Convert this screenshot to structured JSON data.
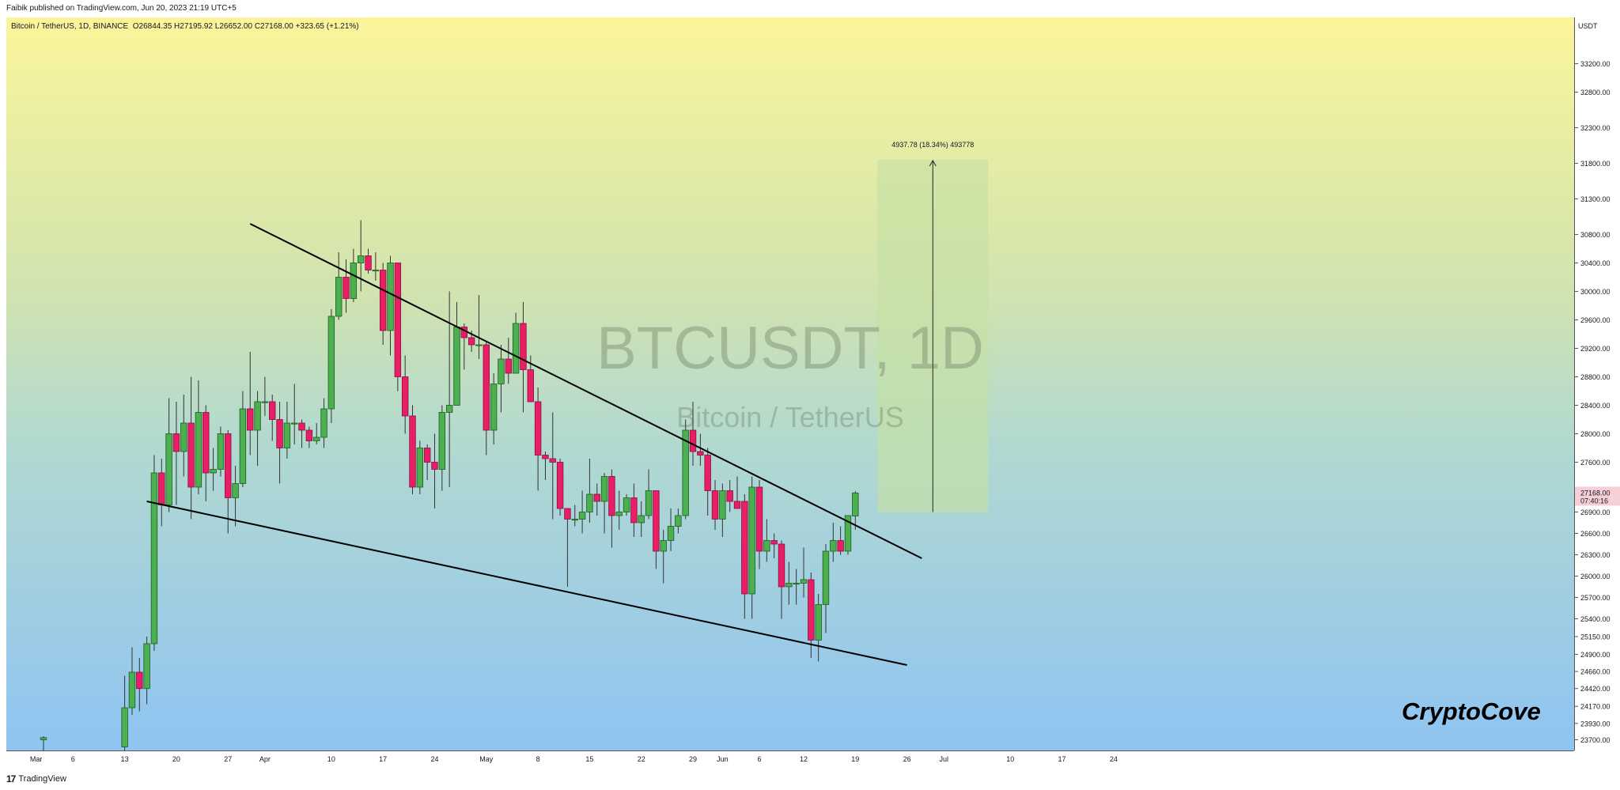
{
  "publish_bar": {
    "text": "Faibik published on TradingView.com, Jun 20, 2023 21:19 UTC+5"
  },
  "legend": {
    "symbol": "Bitcoin / TetherUS, 1D, BINANCE",
    "open": "O26844.35",
    "high": "H27195.92",
    "low": "L26652.00",
    "close": "C27168.00",
    "change": "+323.65 (+1.21%)"
  },
  "watermark": {
    "ticker": "BTCUSDT, 1D",
    "name": "Bitcoin / TetherUS"
  },
  "brand": "CryptoCove",
  "footer": {
    "logo_mark": "17",
    "logo_text": "TradingView"
  },
  "colors": {
    "up": "#4caf50",
    "down": "#e91e63",
    "up_border": "#1b5e20",
    "down_border": "#880e4f",
    "target_box": "#c5e1a5",
    "price_label": "#f7cfd6"
  },
  "chart_data": {
    "type": "candlestick",
    "symbol": "BTCUSDT",
    "interval": "1D",
    "exchange": "BINANCE",
    "currency": "USDT",
    "ylim": [
      23550,
      33850
    ],
    "price_ticks": [
      "33200.00",
      "32800.00",
      "32300.00",
      "31800.00",
      "31300.00",
      "30800.00",
      "30400.00",
      "30000.00",
      "29600.00",
      "29200.00",
      "28800.00",
      "28400.00",
      "28000.00",
      "27600.00",
      "26900.00",
      "26600.00",
      "26300.00",
      "26000.00",
      "25700.00",
      "25400.00",
      "25150.00",
      "24900.00",
      "24660.00",
      "24420.00",
      "24170.00",
      "23930.00",
      "23700.00"
    ],
    "current_price": {
      "value": "27168.00",
      "countdown": "07:40:16"
    },
    "x_ticks": [
      {
        "label": "Mar",
        "i": -1
      },
      {
        "label": "6",
        "i": 4
      },
      {
        "label": "13",
        "i": 11
      },
      {
        "label": "20",
        "i": 18
      },
      {
        "label": "27",
        "i": 25
      },
      {
        "label": "Apr",
        "i": 30
      },
      {
        "label": "10",
        "i": 39
      },
      {
        "label": "17",
        "i": 46
      },
      {
        "label": "24",
        "i": 53
      },
      {
        "label": "May",
        "i": 60
      },
      {
        "label": "8",
        "i": 67
      },
      {
        "label": "15",
        "i": 74
      },
      {
        "label": "22",
        "i": 81
      },
      {
        "label": "29",
        "i": 88
      },
      {
        "label": "Jun",
        "i": 92
      },
      {
        "label": "6",
        "i": 97
      },
      {
        "label": "12",
        "i": 103
      },
      {
        "label": "19",
        "i": 110
      },
      {
        "label": "26",
        "i": 117
      },
      {
        "label": "Jul",
        "i": 122
      },
      {
        "label": "10",
        "i": 131
      },
      {
        "label": "17",
        "i": 138
      },
      {
        "label": "24",
        "i": 145
      }
    ],
    "candles": [
      {
        "date": "Mar 1",
        "o": 23700,
        "h": 23750,
        "l": 23540,
        "c": 23730
      },
      {
        "date": "Mar 13",
        "o": 23600,
        "h": 24600,
        "l": 23500,
        "c": 24150
      },
      {
        "date": "Mar 14",
        "o": 24150,
        "h": 25000,
        "l": 24050,
        "c": 24650
      },
      {
        "date": "Mar 15",
        "o": 24650,
        "h": 24850,
        "l": 24100,
        "c": 24420
      },
      {
        "date": "Mar 16",
        "o": 24420,
        "h": 25150,
        "l": 24200,
        "c": 25050
      },
      {
        "date": "Mar 17",
        "o": 25050,
        "h": 27700,
        "l": 24950,
        "c": 27450
      },
      {
        "date": "Mar 18",
        "o": 27450,
        "h": 27650,
        "l": 26700,
        "c": 27000
      },
      {
        "date": "Mar 19",
        "o": 27000,
        "h": 28500,
        "l": 26900,
        "c": 28000
      },
      {
        "date": "Mar 20",
        "o": 28000,
        "h": 28450,
        "l": 27000,
        "c": 27750
      },
      {
        "date": "Mar 21",
        "o": 27750,
        "h": 28550,
        "l": 27400,
        "c": 28150
      },
      {
        "date": "Mar 22",
        "o": 28150,
        "h": 28800,
        "l": 26800,
        "c": 27250
      },
      {
        "date": "Mar 23",
        "o": 27250,
        "h": 28750,
        "l": 27150,
        "c": 28300
      },
      {
        "date": "Mar 24",
        "o": 28300,
        "h": 28400,
        "l": 27050,
        "c": 27450
      },
      {
        "date": "Mar 25",
        "o": 27450,
        "h": 27800,
        "l": 27200,
        "c": 27500
      },
      {
        "date": "Mar 26",
        "o": 27500,
        "h": 28100,
        "l": 27400,
        "c": 28000
      },
      {
        "date": "Mar 27",
        "o": 28000,
        "h": 28050,
        "l": 26600,
        "c": 27100
      },
      {
        "date": "Mar 28",
        "o": 27100,
        "h": 27550,
        "l": 26700,
        "c": 27300
      },
      {
        "date": "Mar 29",
        "o": 27300,
        "h": 28600,
        "l": 27250,
        "c": 28350
      },
      {
        "date": "Mar 30",
        "o": 28350,
        "h": 29150,
        "l": 27700,
        "c": 28050
      },
      {
        "date": "Mar 31",
        "o": 28050,
        "h": 28600,
        "l": 27550,
        "c": 28450
      },
      {
        "date": "Apr 1",
        "o": 28450,
        "h": 28800,
        "l": 28250,
        "c": 28450
      },
      {
        "date": "Apr 2",
        "o": 28450,
        "h": 28550,
        "l": 27900,
        "c": 28200
      },
      {
        "date": "Apr 3",
        "o": 28200,
        "h": 28450,
        "l": 27300,
        "c": 27800
      },
      {
        "date": "Apr 4",
        "o": 27800,
        "h": 28450,
        "l": 27650,
        "c": 28150
      },
      {
        "date": "Apr 5",
        "o": 28150,
        "h": 28700,
        "l": 27850,
        "c": 28150
      },
      {
        "date": "Apr 6",
        "o": 28150,
        "h": 28200,
        "l": 27800,
        "c": 28050
      },
      {
        "date": "Apr 7",
        "o": 28050,
        "h": 28100,
        "l": 27800,
        "c": 27900
      },
      {
        "date": "Apr 8",
        "o": 27900,
        "h": 28150,
        "l": 27850,
        "c": 27950
      },
      {
        "date": "Apr 9",
        "o": 27950,
        "h": 28500,
        "l": 27800,
        "c": 28350
      },
      {
        "date": "Apr 10",
        "o": 28350,
        "h": 29750,
        "l": 28150,
        "c": 29650
      },
      {
        "date": "Apr 11",
        "o": 29650,
        "h": 30550,
        "l": 29600,
        "c": 30200
      },
      {
        "date": "Apr 12",
        "o": 30200,
        "h": 30450,
        "l": 29700,
        "c": 29900
      },
      {
        "date": "Apr 13",
        "o": 29900,
        "h": 30600,
        "l": 29850,
        "c": 30400
      },
      {
        "date": "Apr 14",
        "o": 30400,
        "h": 31000,
        "l": 30000,
        "c": 30500
      },
      {
        "date": "Apr 15",
        "o": 30500,
        "h": 30600,
        "l": 30250,
        "c": 30300
      },
      {
        "date": "Apr 16",
        "o": 30300,
        "h": 30550,
        "l": 30150,
        "c": 30300
      },
      {
        "date": "Apr 17",
        "o": 30300,
        "h": 30400,
        "l": 29250,
        "c": 29450
      },
      {
        "date": "Apr 18",
        "o": 29450,
        "h": 30500,
        "l": 29100,
        "c": 30400
      },
      {
        "date": "Apr 19",
        "o": 30400,
        "h": 30400,
        "l": 28600,
        "c": 28800
      },
      {
        "date": "Apr 20",
        "o": 28800,
        "h": 29100,
        "l": 28000,
        "c": 28250
      },
      {
        "date": "Apr 21",
        "o": 28250,
        "h": 28400,
        "l": 27150,
        "c": 27250
      },
      {
        "date": "Apr 22",
        "o": 27250,
        "h": 27900,
        "l": 27150,
        "c": 27800
      },
      {
        "date": "Apr 23",
        "o": 27800,
        "h": 27850,
        "l": 27350,
        "c": 27600
      },
      {
        "date": "Apr 24",
        "o": 27600,
        "h": 28000,
        "l": 26950,
        "c": 27500
      },
      {
        "date": "Apr 25",
        "o": 27500,
        "h": 28400,
        "l": 27200,
        "c": 28300
      },
      {
        "date": "Apr 26",
        "o": 28300,
        "h": 30000,
        "l": 27250,
        "c": 28400
      },
      {
        "date": "Apr 27",
        "o": 28400,
        "h": 29850,
        "l": 28400,
        "c": 29500
      },
      {
        "date": "Apr 28",
        "o": 29500,
        "h": 29550,
        "l": 28900,
        "c": 29350
      },
      {
        "date": "Apr 29",
        "o": 29350,
        "h": 29450,
        "l": 29150,
        "c": 29250
      },
      {
        "date": "Apr 30",
        "o": 29250,
        "h": 29950,
        "l": 29050,
        "c": 29250
      },
      {
        "date": "May 1",
        "o": 29250,
        "h": 29300,
        "l": 27700,
        "c": 28050
      },
      {
        "date": "May 2",
        "o": 28050,
        "h": 28850,
        "l": 27850,
        "c": 28700
      },
      {
        "date": "May 3",
        "o": 28700,
        "h": 29250,
        "l": 28300,
        "c": 29050
      },
      {
        "date": "May 4",
        "o": 29050,
        "h": 29350,
        "l": 28700,
        "c": 28850
      },
      {
        "date": "May 5",
        "o": 28850,
        "h": 29700,
        "l": 28850,
        "c": 29550
      },
      {
        "date": "May 6",
        "o": 29550,
        "h": 29850,
        "l": 28300,
        "c": 28900
      },
      {
        "date": "May 7",
        "o": 28900,
        "h": 29100,
        "l": 28500,
        "c": 28450
      },
      {
        "date": "May 8",
        "o": 28450,
        "h": 28650,
        "l": 27200,
        "c": 27700
      },
      {
        "date": "May 9",
        "o": 27700,
        "h": 27750,
        "l": 27350,
        "c": 27650
      },
      {
        "date": "May 10",
        "o": 27650,
        "h": 28300,
        "l": 26800,
        "c": 27600
      },
      {
        "date": "May 11",
        "o": 27600,
        "h": 27650,
        "l": 26850,
        "c": 26950
      },
      {
        "date": "May 12",
        "o": 26950,
        "h": 26950,
        "l": 25850,
        "c": 26800
      },
      {
        "date": "May 13",
        "o": 26800,
        "h": 27000,
        "l": 26700,
        "c": 26800
      },
      {
        "date": "May 14",
        "o": 26800,
        "h": 27200,
        "l": 26600,
        "c": 26900
      },
      {
        "date": "May 15",
        "o": 26900,
        "h": 27650,
        "l": 26750,
        "c": 27150
      },
      {
        "date": "May 16",
        "o": 27150,
        "h": 27300,
        "l": 26850,
        "c": 27050
      },
      {
        "date": "May 17",
        "o": 27050,
        "h": 27450,
        "l": 26600,
        "c": 27400
      },
      {
        "date": "May 18",
        "o": 27400,
        "h": 27500,
        "l": 26400,
        "c": 26850
      },
      {
        "date": "May 19",
        "o": 26850,
        "h": 27200,
        "l": 26650,
        "c": 26900
      },
      {
        "date": "May 20",
        "o": 26900,
        "h": 27150,
        "l": 26850,
        "c": 27100
      },
      {
        "date": "May 21",
        "o": 27100,
        "h": 27300,
        "l": 26550,
        "c": 26750
      },
      {
        "date": "May 22",
        "o": 26750,
        "h": 27050,
        "l": 26550,
        "c": 26850
      },
      {
        "date": "May 23",
        "o": 26850,
        "h": 27500,
        "l": 26800,
        "c": 27200
      },
      {
        "date": "May 24",
        "o": 27200,
        "h": 27200,
        "l": 26100,
        "c": 26350
      },
      {
        "date": "May 25",
        "o": 26350,
        "h": 26650,
        "l": 25900,
        "c": 26500
      },
      {
        "date": "May 26",
        "o": 26500,
        "h": 26950,
        "l": 26350,
        "c": 26700
      },
      {
        "date": "May 27",
        "o": 26700,
        "h": 26950,
        "l": 26600,
        "c": 26850
      },
      {
        "date": "May 28",
        "o": 26850,
        "h": 28200,
        "l": 26800,
        "c": 28050
      },
      {
        "date": "May 29",
        "o": 28050,
        "h": 28450,
        "l": 27550,
        "c": 27750
      },
      {
        "date": "May 30",
        "o": 27750,
        "h": 28000,
        "l": 27550,
        "c": 27700
      },
      {
        "date": "May 31",
        "o": 27700,
        "h": 27800,
        "l": 26850,
        "c": 27200
      },
      {
        "date": "Jun 1",
        "o": 27200,
        "h": 27350,
        "l": 26650,
        "c": 26800
      },
      {
        "date": "Jun 2",
        "o": 26800,
        "h": 27300,
        "l": 26550,
        "c": 27200
      },
      {
        "date": "Jun 3",
        "o": 27200,
        "h": 27350,
        "l": 26900,
        "c": 27050
      },
      {
        "date": "Jun 4",
        "o": 27050,
        "h": 27400,
        "l": 26950,
        "c": 26950
      },
      {
        "date": "Jun 5",
        "o": 27050,
        "h": 27150,
        "l": 25400,
        "c": 25750
      },
      {
        "date": "Jun 6",
        "o": 25750,
        "h": 27400,
        "l": 25400,
        "c": 27250
      },
      {
        "date": "Jun 7",
        "o": 27250,
        "h": 27350,
        "l": 26100,
        "c": 26350
      },
      {
        "date": "Jun 8",
        "o": 26350,
        "h": 26800,
        "l": 26200,
        "c": 26500
      },
      {
        "date": "Jun 9",
        "o": 26500,
        "h": 26600,
        "l": 26250,
        "c": 26450
      },
      {
        "date": "Jun 10",
        "o": 26450,
        "h": 26500,
        "l": 25400,
        "c": 25850
      },
      {
        "date": "Jun 11",
        "o": 25850,
        "h": 26200,
        "l": 25600,
        "c": 25900
      },
      {
        "date": "Jun 12",
        "o": 25900,
        "h": 26100,
        "l": 25600,
        "c": 25900
      },
      {
        "date": "Jun 13",
        "o": 25900,
        "h": 26400,
        "l": 25700,
        "c": 25950
      },
      {
        "date": "Jun 14",
        "o": 25950,
        "h": 26050,
        "l": 24850,
        "c": 25100
      },
      {
        "date": "Jun 15",
        "o": 25100,
        "h": 25750,
        "l": 24800,
        "c": 25600
      },
      {
        "date": "Jun 16",
        "o": 25600,
        "h": 26450,
        "l": 25200,
        "c": 26350
      },
      {
        "date": "Jun 17",
        "o": 26350,
        "h": 26750,
        "l": 26200,
        "c": 26500
      },
      {
        "date": "Jun 18",
        "o": 26500,
        "h": 26700,
        "l": 26300,
        "c": 26350
      },
      {
        "date": "Jun 19",
        "o": 26350,
        "h": 26800,
        "l": 26300,
        "c": 26850
      },
      {
        "date": "Jun 20",
        "o": 26844.35,
        "h": 27195.92,
        "l": 26652,
        "c": 27168
      }
    ],
    "candle_index_start_mar13": 11,
    "trendlines": [
      {
        "name": "upper-resistance",
        "from": {
          "i": 28,
          "price": 30950
        },
        "to": {
          "i": 119,
          "price": 26250
        }
      },
      {
        "name": "lower-support",
        "from": {
          "i": 14,
          "price": 27050
        },
        "to": {
          "i": 117,
          "price": 24750
        }
      }
    ],
    "target_box": {
      "from_i": 113,
      "to_i": 128,
      "low": 26900,
      "high": 31850,
      "label": "4937.78 (18.34%) 493778"
    }
  }
}
